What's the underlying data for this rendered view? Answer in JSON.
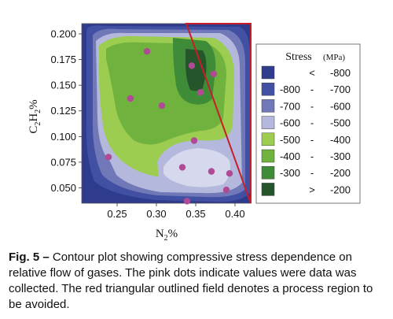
{
  "chart_data": {
    "type": "contour",
    "xlabel": "N2%",
    "ylabel": "C2H2%",
    "xlim": [
      0.205,
      0.42
    ],
    "ylim": [
      0.035,
      0.21
    ],
    "xticks": [
      "0.25",
      "0.30",
      "0.35",
      "0.40"
    ],
    "xtick_values": [
      0.25,
      0.3,
      0.35,
      0.4
    ],
    "yticks": [
      "0.050",
      "0.075",
      "0.100",
      "0.125",
      "0.150",
      "0.175",
      "0.200"
    ],
    "ytick_values": [
      0.05,
      0.075,
      0.1,
      0.125,
      0.15,
      0.175,
      0.2
    ],
    "legend": {
      "title": "Stress",
      "unit": "(MPa)",
      "placement": "right",
      "entries": [
        {
          "left": "",
          "op": "<",
          "right": "-800",
          "color": "#2f3b8c"
        },
        {
          "left": "-800",
          "op": "-",
          "right": "-700",
          "color": "#4250a4"
        },
        {
          "left": "-700",
          "op": "-",
          "right": "-600",
          "color": "#7078b8"
        },
        {
          "left": "-600",
          "op": "-",
          "right": "-500",
          "color": "#b3b8dc"
        },
        {
          "left": "-500",
          "op": "-",
          "right": "-400",
          "color": "#9ccc50"
        },
        {
          "left": "-400",
          "op": "-",
          "right": "-300",
          "color": "#6fb23e"
        },
        {
          "left": "-300",
          "op": "-",
          "right": "-200",
          "color": "#3f8c38"
        },
        {
          "left": "",
          "op": ">",
          "right": "-200",
          "color": "#25552b"
        }
      ]
    },
    "data_points": [
      {
        "x": 0.288,
        "y": 0.183
      },
      {
        "x": 0.267,
        "y": 0.137
      },
      {
        "x": 0.307,
        "y": 0.13
      },
      {
        "x": 0.345,
        "y": 0.169
      },
      {
        "x": 0.356,
        "y": 0.143
      },
      {
        "x": 0.373,
        "y": 0.161
      },
      {
        "x": 0.348,
        "y": 0.096
      },
      {
        "x": 0.239,
        "y": 0.08
      },
      {
        "x": 0.333,
        "y": 0.07
      },
      {
        "x": 0.37,
        "y": 0.066
      },
      {
        "x": 0.393,
        "y": 0.064
      },
      {
        "x": 0.389,
        "y": 0.048
      },
      {
        "x": 0.339,
        "y": 0.037
      }
    ],
    "excluded_region": [
      {
        "x": 0.338,
        "y": 0.21
      },
      {
        "x": 0.42,
        "y": 0.21
      },
      {
        "x": 0.42,
        "y": 0.035
      }
    ],
    "colors": {
      "data_points": "#b04a94",
      "excluded_region": "#c81e28"
    }
  },
  "caption": {
    "label": "Fig. 5 –",
    "text": "Contour plot showing compressive stress dependence on relative flow of gases. The pink dots indicate values were data was collected. The red triangular outlined field denotes a process region to be avoided."
  }
}
